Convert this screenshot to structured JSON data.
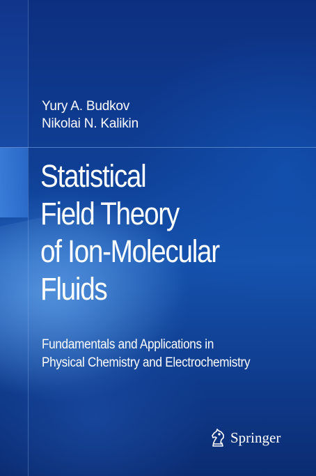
{
  "cover": {
    "authors": [
      "Yury A. Budkov",
      "Nikolai N. Kalikin"
    ],
    "title_lines": [
      "Statistical",
      "Field Theory",
      "of Ion-Molecular",
      "Fluids"
    ],
    "subtitle_lines": [
      "Fundamentals and Applications in",
      "Physical Chemistry and Electrochemistry"
    ],
    "publisher": {
      "name": "Springer",
      "logo_icon": "springer-knight-icon"
    },
    "colors": {
      "background": "#0f3f95",
      "text": "#ffffff"
    }
  }
}
